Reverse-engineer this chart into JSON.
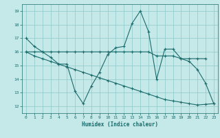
{
  "xlabel": "Humidex (Indice chaleur)",
  "xlim": [
    -0.5,
    23.5
  ],
  "ylim": [
    11.5,
    19.5
  ],
  "yticks": [
    12,
    13,
    14,
    15,
    16,
    17,
    18,
    19
  ],
  "xticks": [
    0,
    1,
    2,
    3,
    4,
    5,
    6,
    7,
    8,
    9,
    10,
    11,
    12,
    13,
    14,
    15,
    16,
    17,
    18,
    19,
    20,
    21,
    22,
    23
  ],
  "bg_color": "#c5e8e8",
  "line_color": "#1a6b6b",
  "grid_color": "#8ec8c8",
  "series": [
    {
      "x": [
        0,
        1,
        2,
        3,
        4,
        5,
        6,
        7,
        8,
        9,
        10,
        11,
        12,
        13,
        14,
        15,
        16,
        17,
        18,
        19,
        20,
        21,
        22,
        23
      ],
      "y": [
        17.0,
        16.4,
        16.0,
        15.6,
        15.1,
        15.1,
        13.1,
        12.2,
        13.5,
        14.5,
        15.8,
        16.3,
        16.4,
        18.1,
        19.0,
        17.5,
        14.0,
        16.2,
        16.2,
        15.5,
        15.3,
        14.7,
        13.7,
        12.2
      ]
    },
    {
      "x": [
        0,
        1,
        2,
        3,
        4,
        5,
        6,
        7,
        8,
        9,
        10,
        11,
        12,
        13,
        14,
        15,
        16,
        17,
        18,
        19,
        20,
        21,
        22
      ],
      "y": [
        16.0,
        16.0,
        16.0,
        16.0,
        16.0,
        16.0,
        16.0,
        16.0,
        16.0,
        16.0,
        16.0,
        16.0,
        16.0,
        16.0,
        16.0,
        16.0,
        15.7,
        15.7,
        15.7,
        15.5,
        15.5,
        15.5,
        15.5
      ]
    },
    {
      "x": [
        0,
        1,
        2,
        3,
        4,
        5,
        6,
        7,
        8,
        9,
        10,
        11,
        12,
        13,
        14,
        15,
        16,
        17,
        18,
        19,
        20,
        21,
        22,
        23
      ],
      "y": [
        16.0,
        15.7,
        15.5,
        15.3,
        15.1,
        14.9,
        14.7,
        14.5,
        14.3,
        14.1,
        13.9,
        13.7,
        13.5,
        13.3,
        13.1,
        12.9,
        12.7,
        12.5,
        12.4,
        12.3,
        12.2,
        12.1,
        12.15,
        12.2
      ]
    }
  ]
}
